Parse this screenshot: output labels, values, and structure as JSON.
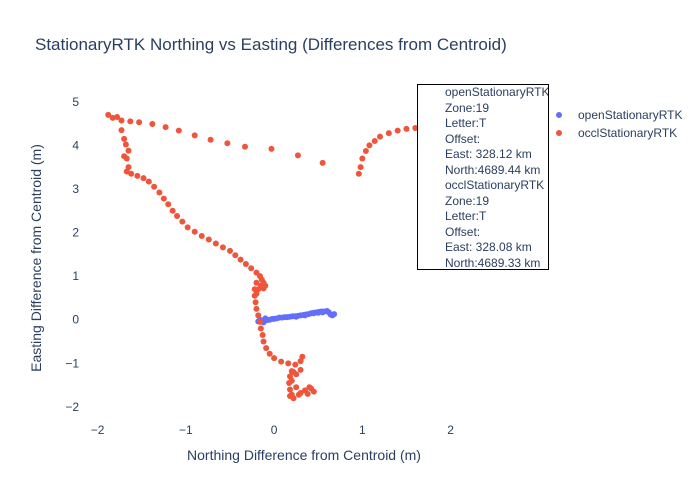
{
  "chart_data": {
    "type": "scatter",
    "title": "StationaryRTK Northing vs Easting (Differences from Centroid)",
    "xlabel": "Northing Difference from Centroid (m)",
    "ylabel": "Easting Difference from Centroid (m)",
    "xlim": [
      -2.2,
      2.9
    ],
    "ylim": [
      -2.3,
      5.5
    ],
    "x_ticks": [
      -2,
      -1,
      0,
      1,
      2
    ],
    "x_tick_labels": [
      "−2",
      "−1",
      "0",
      "1",
      "2"
    ],
    "y_ticks": [
      -2,
      -1,
      0,
      1,
      2,
      3,
      4,
      5
    ],
    "y_tick_labels": [
      "−2",
      "−1",
      "0",
      "1",
      "2",
      "3",
      "4",
      "5"
    ],
    "grid": false,
    "legend_position": "right",
    "series": [
      {
        "name": "openStationaryRTK",
        "color": "#636efa",
        "points": [
          [
            -0.18,
            -0.04
          ],
          [
            -0.15,
            -0.02
          ],
          [
            -0.12,
            -0.02
          ],
          [
            -0.1,
            0.0
          ],
          [
            -0.08,
            -0.01
          ],
          [
            -0.05,
            0.0
          ],
          [
            -0.02,
            0.02
          ],
          [
            0.0,
            0.02
          ],
          [
            0.03,
            0.03
          ],
          [
            0.06,
            0.05
          ],
          [
            0.09,
            0.05
          ],
          [
            0.12,
            0.06
          ],
          [
            0.15,
            0.06
          ],
          [
            0.18,
            0.07
          ],
          [
            0.21,
            0.08
          ],
          [
            0.24,
            0.08
          ],
          [
            0.27,
            0.09
          ],
          [
            0.3,
            0.1
          ],
          [
            0.33,
            0.11
          ],
          [
            0.36,
            0.12
          ],
          [
            0.39,
            0.13
          ],
          [
            0.42,
            0.15
          ],
          [
            0.45,
            0.16
          ],
          [
            0.48,
            0.17
          ],
          [
            0.51,
            0.18
          ],
          [
            0.54,
            0.19
          ],
          [
            0.57,
            0.19
          ],
          [
            0.6,
            0.2
          ],
          [
            0.62,
            0.17
          ],
          [
            0.64,
            0.12
          ],
          [
            0.66,
            0.1
          ],
          [
            0.68,
            0.13
          ],
          [
            0.55,
            0.17
          ],
          [
            0.5,
            0.16
          ],
          [
            0.45,
            0.15
          ],
          [
            0.35,
            0.1
          ],
          [
            -0.12,
            -0.06
          ],
          [
            -0.16,
            0.0
          ],
          [
            -0.1,
            0.03
          ],
          [
            0.25,
            0.07
          ]
        ]
      },
      {
        "name": "occlStationaryRTK",
        "color": "#ef553b",
        "points": [
          [
            -1.88,
            4.7
          ],
          [
            -1.83,
            4.63
          ],
          [
            -1.78,
            4.65
          ],
          [
            -1.73,
            4.57
          ],
          [
            -1.63,
            4.55
          ],
          [
            -1.53,
            4.53
          ],
          [
            -1.38,
            4.49
          ],
          [
            -1.23,
            4.42
          ],
          [
            -1.08,
            4.34
          ],
          [
            -0.9,
            4.23
          ],
          [
            -0.72,
            4.13
          ],
          [
            -0.53,
            4.05
          ],
          [
            -0.33,
            3.97
          ],
          [
            -0.03,
            3.92
          ],
          [
            0.27,
            3.77
          ],
          [
            0.55,
            3.6
          ],
          [
            0.96,
            3.35
          ],
          [
            0.98,
            3.5
          ],
          [
            1.0,
            3.7
          ],
          [
            1.04,
            3.87
          ],
          [
            1.08,
            4.0
          ],
          [
            1.14,
            4.1
          ],
          [
            1.2,
            4.2
          ],
          [
            1.3,
            4.28
          ],
          [
            1.4,
            4.34
          ],
          [
            1.5,
            4.38
          ],
          [
            1.6,
            4.4
          ],
          [
            1.74,
            4.4
          ],
          [
            1.9,
            4.4
          ],
          [
            2.1,
            4.38
          ],
          [
            2.25,
            4.37
          ],
          [
            2.4,
            4.3
          ],
          [
            2.5,
            4.2
          ],
          [
            2.6,
            4.1
          ],
          [
            -1.73,
            4.35
          ],
          [
            -1.7,
            4.15
          ],
          [
            -1.68,
            4.02
          ],
          [
            -1.65,
            3.88
          ],
          [
            -1.7,
            3.75
          ],
          [
            -1.67,
            3.7
          ],
          [
            -1.65,
            3.5
          ],
          [
            -1.67,
            3.4
          ],
          [
            -1.62,
            3.35
          ],
          [
            -1.55,
            3.3
          ],
          [
            -1.48,
            3.25
          ],
          [
            -1.42,
            3.17
          ],
          [
            -1.36,
            3.05
          ],
          [
            -1.3,
            2.92
          ],
          [
            -1.25,
            2.78
          ],
          [
            -1.2,
            2.65
          ],
          [
            -1.15,
            2.5
          ],
          [
            -1.1,
            2.38
          ],
          [
            -1.04,
            2.25
          ],
          [
            -0.98,
            2.12
          ],
          [
            -0.9,
            2.02
          ],
          [
            -0.82,
            1.92
          ],
          [
            -0.74,
            1.84
          ],
          [
            -0.66,
            1.75
          ],
          [
            -0.58,
            1.66
          ],
          [
            -0.5,
            1.58
          ],
          [
            -0.44,
            1.48
          ],
          [
            -0.38,
            1.38
          ],
          [
            -0.32,
            1.28
          ],
          [
            -0.26,
            1.18
          ],
          [
            -0.2,
            1.08
          ],
          [
            -0.16,
            1.0
          ],
          [
            -0.14,
            0.92
          ],
          [
            -0.12,
            0.85
          ],
          [
            -0.1,
            0.78
          ],
          [
            -0.12,
            0.72
          ],
          [
            -0.15,
            0.78
          ],
          [
            -0.2,
            0.85
          ],
          [
            -0.22,
            0.7
          ],
          [
            -0.22,
            0.55
          ],
          [
            -0.21,
            0.4
          ],
          [
            -0.2,
            0.25
          ],
          [
            -0.18,
            0.1
          ],
          [
            -0.16,
            -0.05
          ],
          [
            -0.15,
            -0.2
          ],
          [
            -0.13,
            -0.35
          ],
          [
            -0.12,
            -0.5
          ],
          [
            -0.09,
            -0.65
          ],
          [
            -0.05,
            -0.78
          ],
          [
            0.0,
            -0.88
          ],
          [
            0.08,
            -0.96
          ],
          [
            0.16,
            -1.0
          ],
          [
            0.24,
            -1.03
          ],
          [
            0.3,
            -0.95
          ],
          [
            0.32,
            -0.85
          ],
          [
            0.3,
            -1.15
          ],
          [
            0.25,
            -1.25
          ],
          [
            0.2,
            -1.18
          ],
          [
            0.18,
            -1.3
          ],
          [
            0.17,
            -1.45
          ],
          [
            0.18,
            -1.6
          ],
          [
            0.2,
            -1.72
          ],
          [
            0.22,
            -1.8
          ],
          [
            0.28,
            -1.72
          ],
          [
            0.35,
            -1.62
          ],
          [
            0.42,
            -1.58
          ],
          [
            0.45,
            -1.65
          ],
          [
            0.38,
            -1.7
          ],
          [
            0.3,
            -1.68
          ],
          [
            0.25,
            -1.55
          ],
          [
            0.2,
            -1.4
          ],
          [
            0.22,
            -1.2
          ],
          [
            0.18,
            -1.75
          ],
          [
            0.4,
            -1.55
          ],
          [
            -0.18,
            0.7
          ],
          [
            -0.2,
            0.6
          ]
        ]
      }
    ],
    "annotation_lines": [
      "openStationaryRTK",
      "Zone:19",
      "Letter:T",
      "Offset:",
      "East: 328.12 km",
      "North:4689.44 km",
      "occlStationaryRTK",
      "Zone:19",
      "Letter:T",
      "Offset:",
      "East: 328.08 km",
      "North:4689.33 km"
    ]
  }
}
